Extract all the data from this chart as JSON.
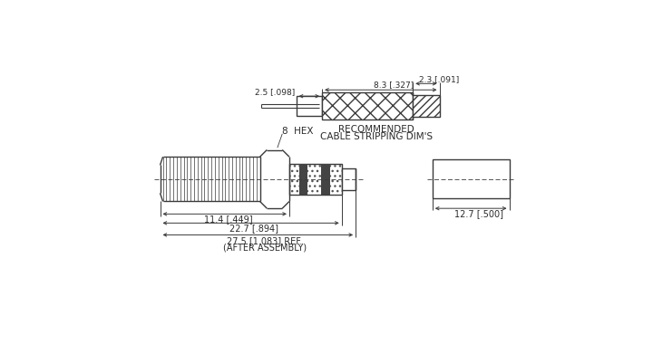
{
  "background_color": "#ffffff",
  "line_color": "#3a3a3a",
  "title_color": "#2a2a2a",
  "fig_width": 7.2,
  "fig_height": 3.91,
  "dpi": 100,
  "annotations": {
    "cable_dim_2_3": "2.3 [.091]",
    "cable_dim_2_5": "2.5 [.098]",
    "cable_dim_8_3": "8.3 [.327]",
    "recommended": "RECOMMENDED",
    "cable_stripping": "CABLE STRIPPING DIM'S",
    "hex_label": "8  HEX",
    "dim_11_4": "11.4 [.449]",
    "dim_22_7": "22.7 [.894]",
    "dim_27_5": "27.5 [1.083] REF.",
    "after_assembly": "(AFTER ASSEMBLY)",
    "dim_12_7": "12.7 [.500]"
  }
}
